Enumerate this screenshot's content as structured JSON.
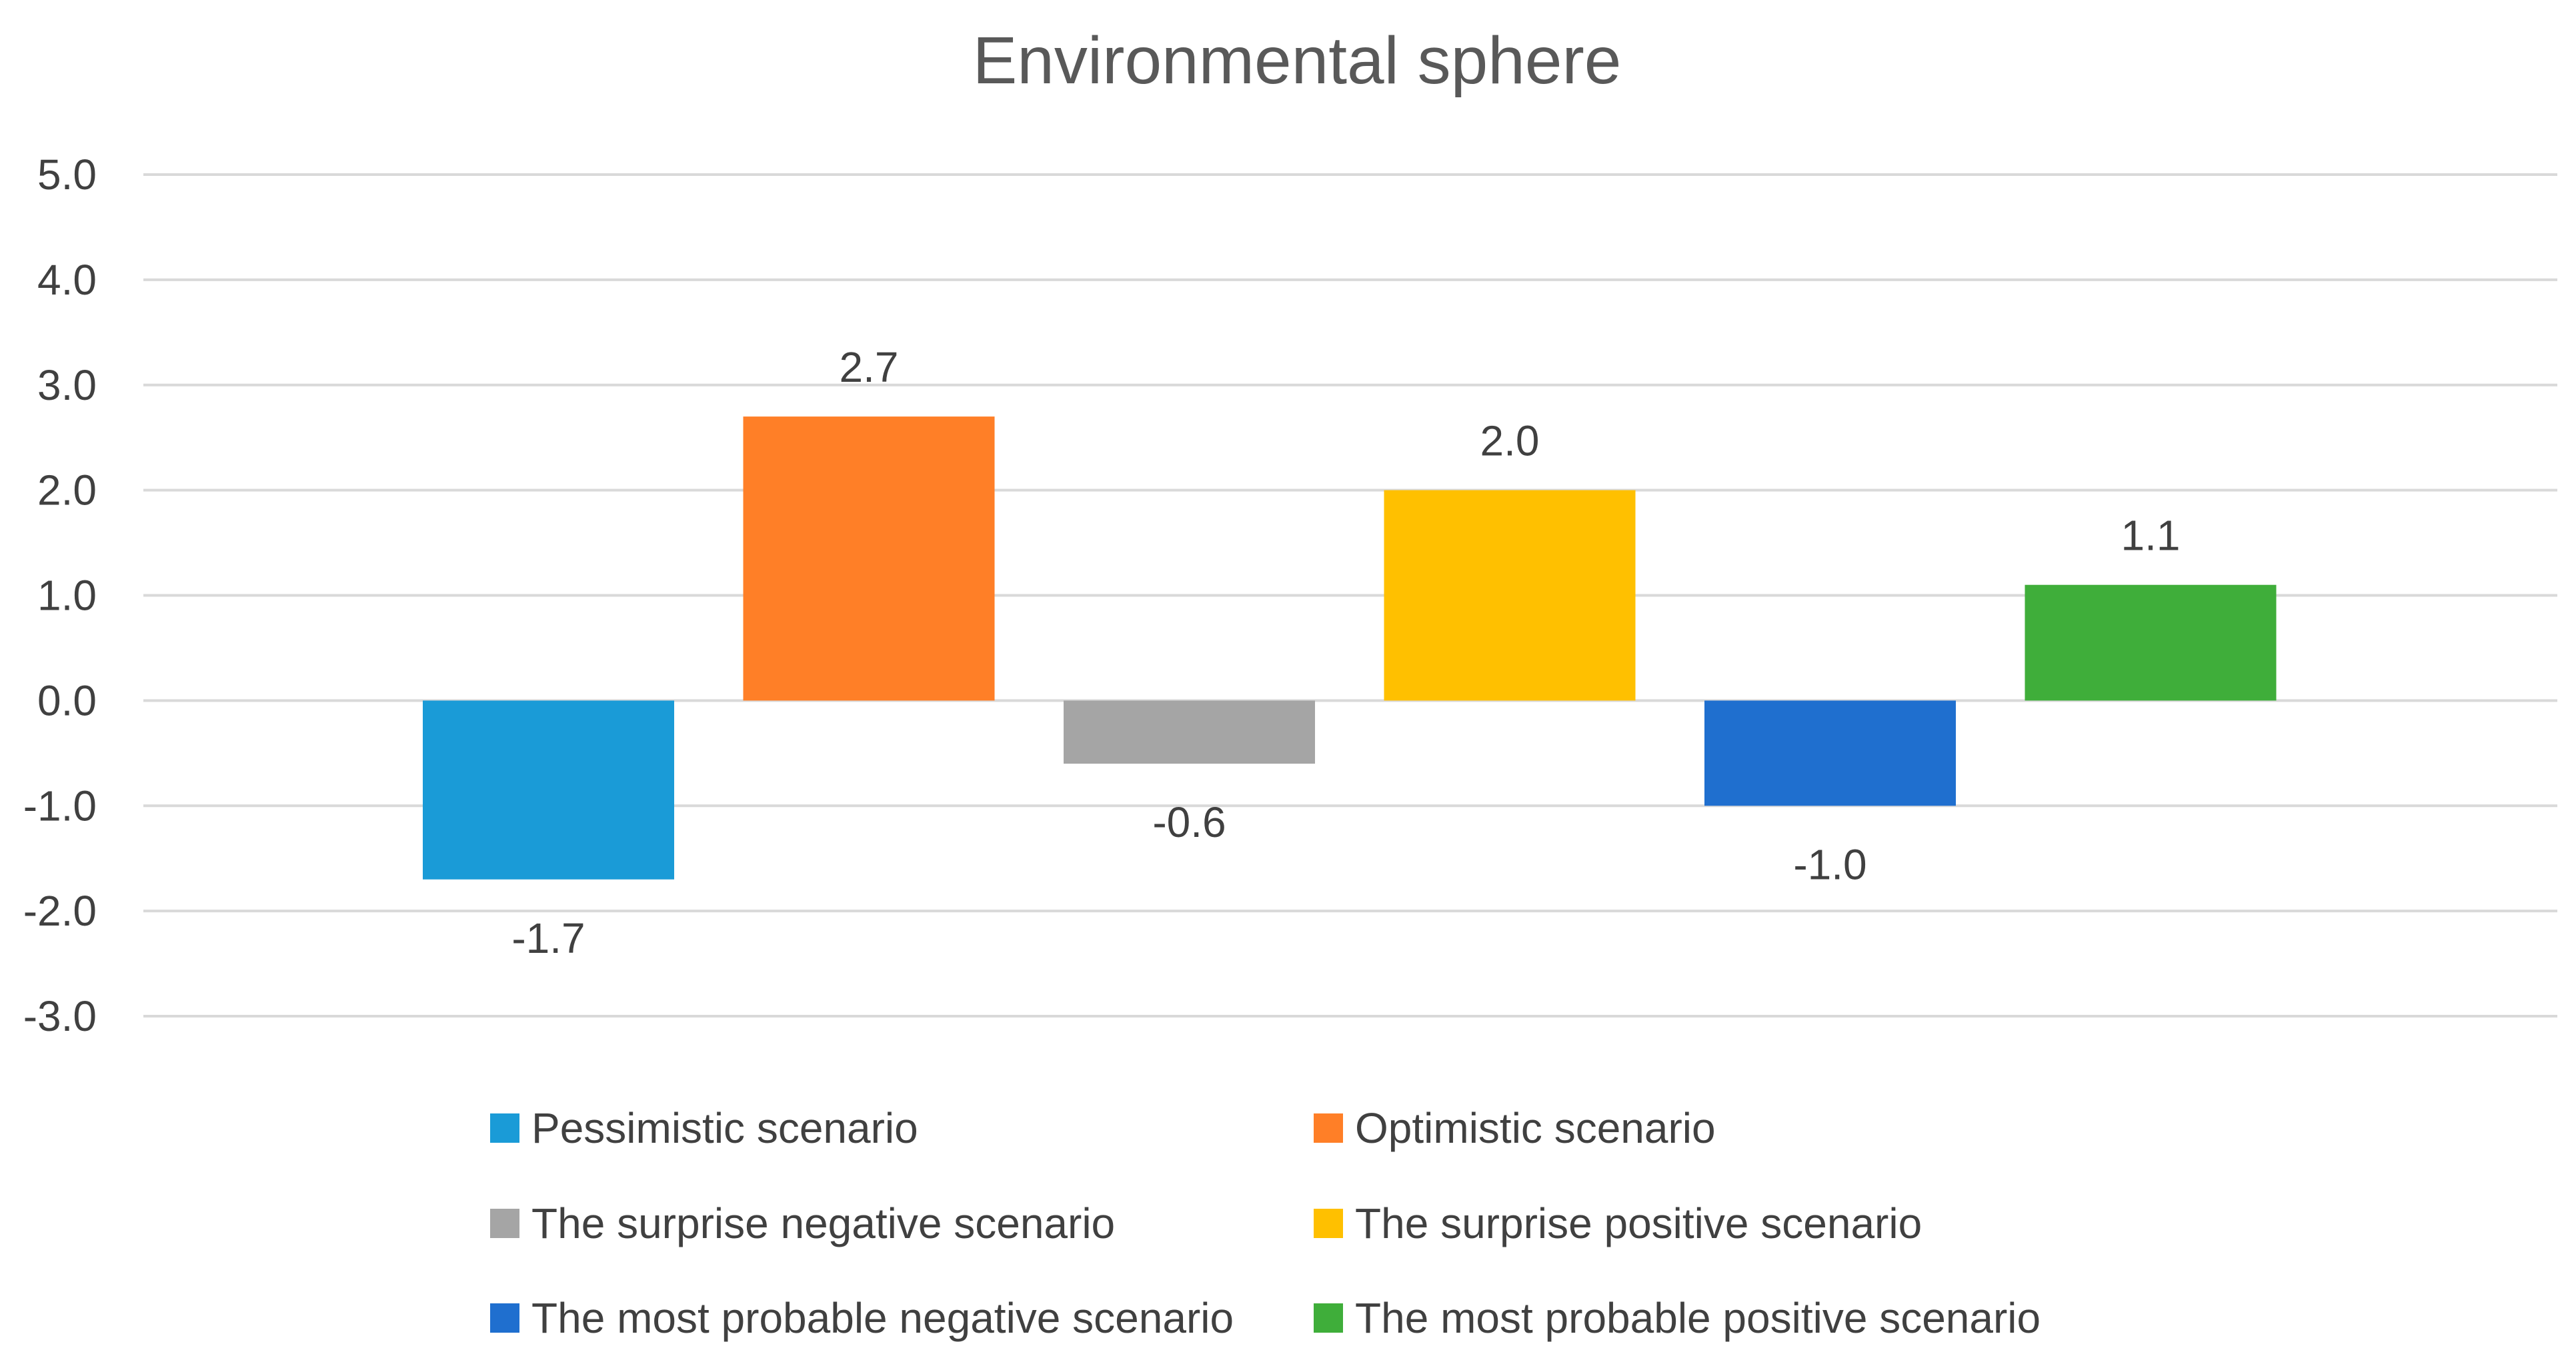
{
  "chart_data": {
    "type": "bar",
    "title": "Environmental sphere",
    "xlabel": "",
    "ylabel": "",
    "ylim": [
      -3.0,
      5.0
    ],
    "ytick_step": 1.0,
    "ytick_labels": [
      "5.0",
      "4.0",
      "3.0",
      "2.0",
      "1.0",
      "0.0",
      "-1.0",
      "-2.0",
      "-3.0"
    ],
    "grid": true,
    "legend_position": "bottom",
    "series": [
      {
        "name": "Pessimistic scenario",
        "value": -1.7,
        "label": "-1.7",
        "color": "#1A9BD7"
      },
      {
        "name": "Optimistic scenario",
        "value": 2.7,
        "label": "2.7",
        "color": "#FF7F27"
      },
      {
        "name": "The surprise negative scenario",
        "value": -0.6,
        "label": "-0.6",
        "color": "#A5A5A5"
      },
      {
        "name": "The surprise positive scenario",
        "value": 2.0,
        "label": "2.0",
        "color": "#FFC000"
      },
      {
        "name": "The most probable negative scenario",
        "value": -1.0,
        "label": "-1.0",
        "color": "#1F6FCF"
      },
      {
        "name": "The most probable positive scenario",
        "value": 1.1,
        "label": "1.1",
        "color": "#3FAE3A"
      }
    ]
  }
}
